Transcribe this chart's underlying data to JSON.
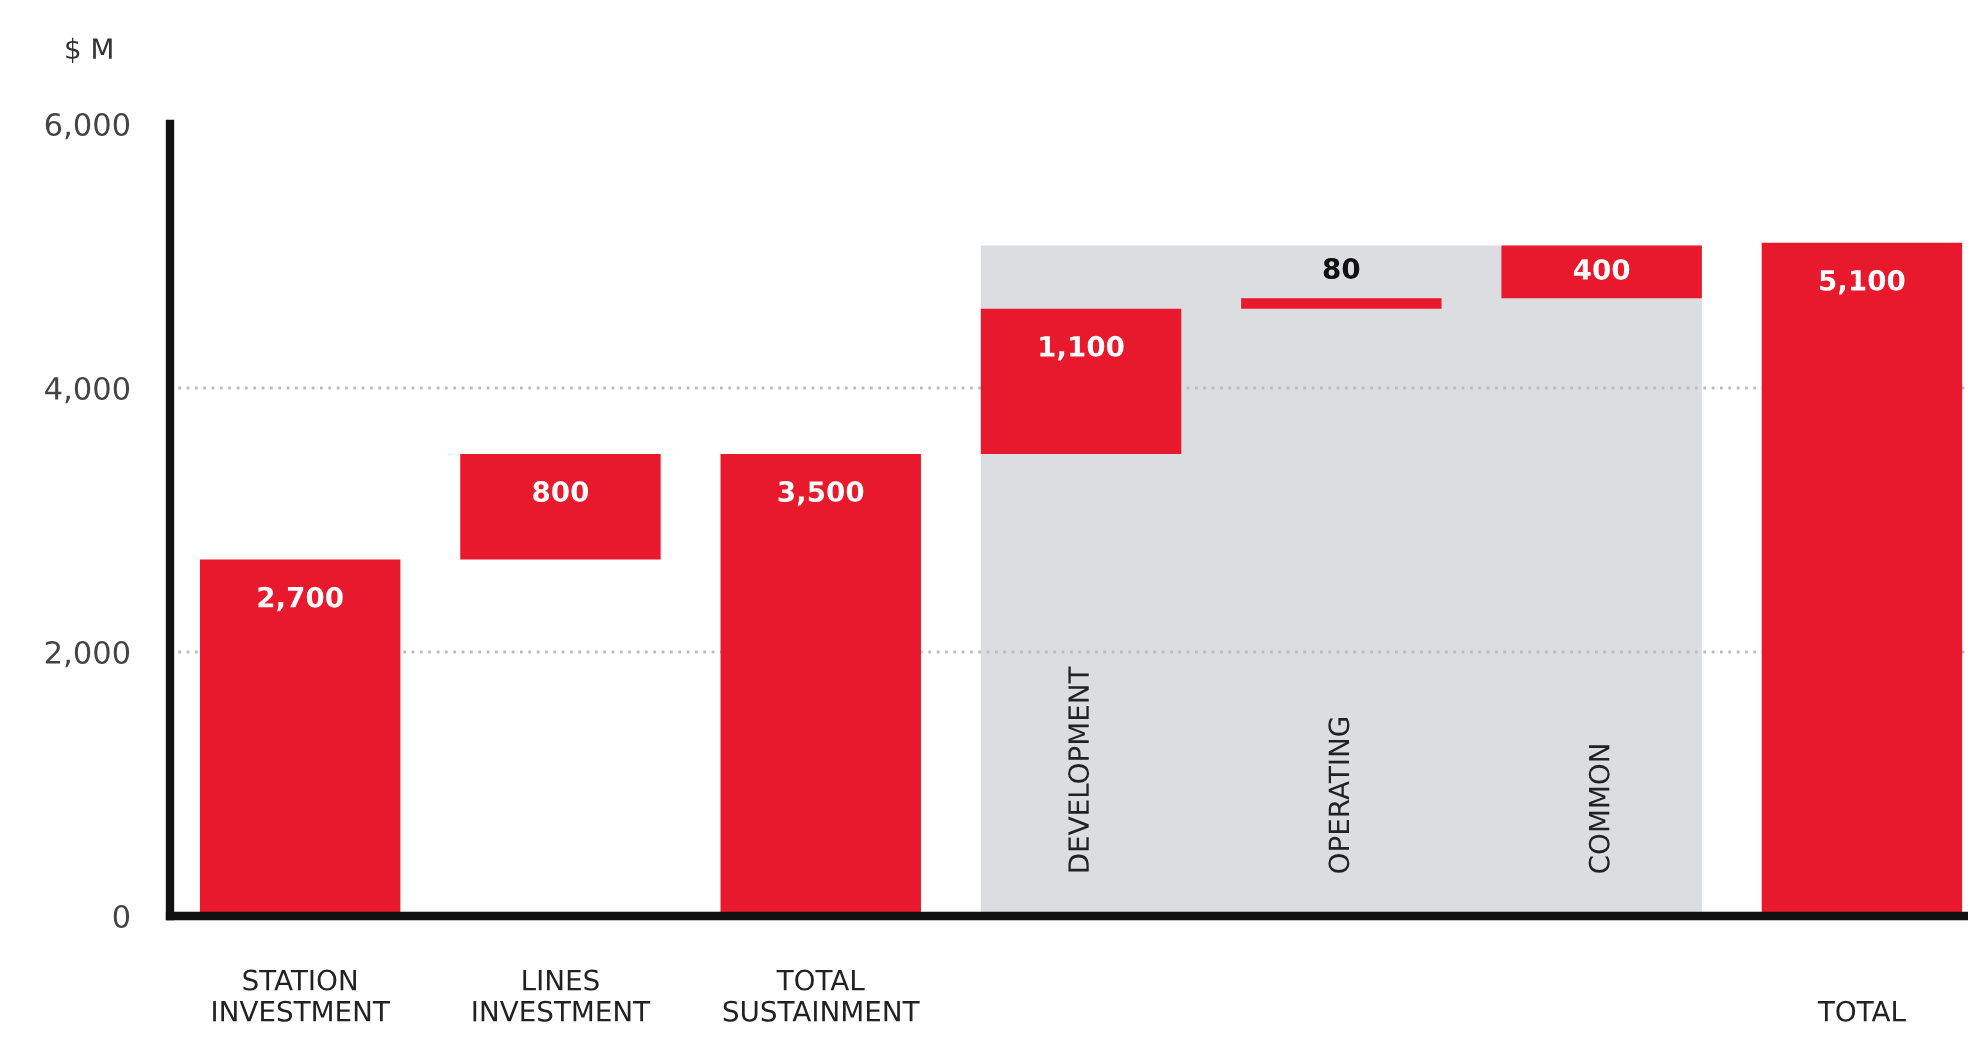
{
  "chart_data": {
    "type": "bar",
    "ylabel": "$ M",
    "categories": [
      "STATION\nINVESTMENT",
      "LINES\nINVESTMENT",
      "TOTAL\nSUSTAINMENT",
      "DEVELOPMENT",
      "OPERATING",
      "COMMON",
      "TOTAL"
    ],
    "values": [
      2700,
      800,
      3500,
      1100,
      80,
      400,
      5100
    ],
    "base": [
      0,
      2700,
      0,
      3500,
      4600,
      4680,
      0
    ],
    "color": "#e8192c",
    "value_labels": [
      "2,700",
      "800",
      "3,500",
      "1,100",
      "80",
      "400",
      "5,100"
    ],
    "ylim": [
      0,
      6000
    ],
    "yticks": [
      0,
      {
        "value": 2000,
        "label": "2,000"
      },
      {
        "value": 4000,
        "label": "4,000"
      },
      {
        "value": 6000,
        "label": "6,000"
      }
    ],
    "grid": "y",
    "bands": [
      {
        "axis": "x",
        "from": "DEVELOPMENT",
        "to": "COMMON",
        "color": "#dcdde1"
      }
    ]
  }
}
